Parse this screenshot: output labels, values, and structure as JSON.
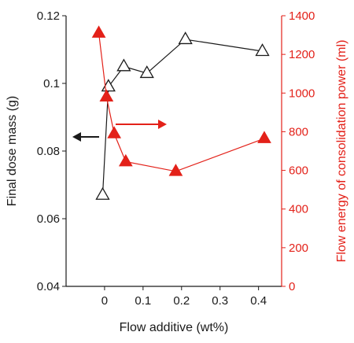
{
  "chart_data": {
    "type": "scatter",
    "xlabel": "Flow additive (wt%)",
    "ylabel": "Final dose mass (g)",
    "y2label": "Flow energy of consolidation power (ml)",
    "xlim": [
      -0.1,
      0.46
    ],
    "ylim": [
      0.04,
      0.12
    ],
    "y2lim": [
      0,
      1400
    ],
    "xticks": [
      "0",
      "0.1",
      "0.2",
      "0.3",
      "0.4"
    ],
    "xtick_values": [
      0,
      0.1,
      0.2,
      0.3,
      0.4
    ],
    "yticks": [
      "0.04",
      "0.06",
      "0.08",
      "0.1",
      "0.12"
    ],
    "ytick_values": [
      0.04,
      0.06,
      0.08,
      0.1,
      0.12
    ],
    "y2ticks": [
      "0",
      "200",
      "400",
      "600",
      "800",
      "1000",
      "1200",
      "1400"
    ],
    "y2tick_values": [
      0,
      200,
      400,
      600,
      800,
      1000,
      1200,
      1400
    ],
    "grid": false,
    "series": [
      {
        "axis": "left",
        "marker": "open-triangle",
        "color": "#1a1a1a",
        "x": [
          -0.005,
          0.01,
          0.05,
          0.11,
          0.21,
          0.41
        ],
        "y": [
          0.067,
          0.099,
          0.105,
          0.103,
          0.113,
          0.1095
        ]
      },
      {
        "axis": "right",
        "marker": "filled-triangle",
        "color": "#e32119",
        "x": [
          -0.015,
          0.005,
          0.025,
          0.055,
          0.185,
          0.415
        ],
        "y": [
          1310,
          980,
          790,
          645,
          595,
          765
        ]
      }
    ],
    "annotations": [
      {
        "type": "arrow",
        "direction": "left",
        "color": "#1a1a1a",
        "meaning": "points to left axis"
      },
      {
        "type": "arrow",
        "direction": "right",
        "color": "#e32119",
        "meaning": "points to right axis"
      }
    ]
  }
}
